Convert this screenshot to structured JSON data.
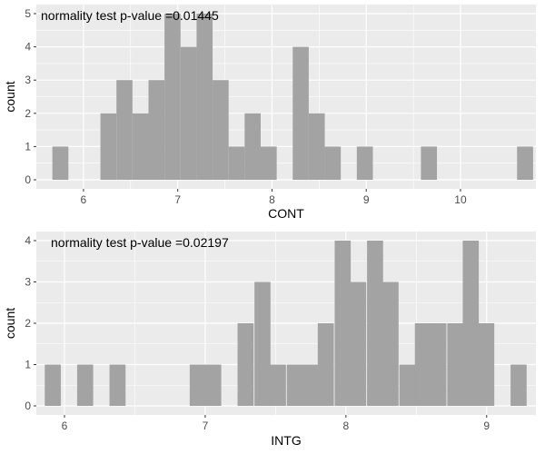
{
  "chart_data": [
    {
      "type": "bar",
      "subtype": "histogram",
      "xlabel": "CONT",
      "ylabel": "count",
      "annotation": "normality test p-value =0.01445",
      "xlim": [
        5.5,
        10.8
      ],
      "ylim": [
        0,
        5
      ],
      "x_ticks": [
        6,
        7,
        8,
        9,
        10
      ],
      "y_ticks": [
        0,
        1,
        2,
        3,
        4,
        5
      ],
      "bin_width": 0.17,
      "bins": [
        {
          "x0": 5.67,
          "count": 1
        },
        {
          "x0": 6.18,
          "count": 2
        },
        {
          "x0": 6.35,
          "count": 3
        },
        {
          "x0": 6.52,
          "count": 2
        },
        {
          "x0": 6.69,
          "count": 3
        },
        {
          "x0": 6.86,
          "count": 5
        },
        {
          "x0": 7.03,
          "count": 4
        },
        {
          "x0": 7.2,
          "count": 5
        },
        {
          "x0": 7.37,
          "count": 3
        },
        {
          "x0": 7.54,
          "count": 1
        },
        {
          "x0": 7.71,
          "count": 2
        },
        {
          "x0": 7.88,
          "count": 1
        },
        {
          "x0": 8.22,
          "count": 4
        },
        {
          "x0": 8.39,
          "count": 2
        },
        {
          "x0": 8.56,
          "count": 1
        },
        {
          "x0": 8.9,
          "count": 1
        },
        {
          "x0": 9.58,
          "count": 1
        },
        {
          "x0": 10.6,
          "count": 1
        }
      ],
      "bar_color": "#a3a3a3",
      "panel_color": "#ebebeb",
      "grid": true
    },
    {
      "type": "bar",
      "subtype": "histogram",
      "xlabel": "INTG",
      "ylabel": "count",
      "annotation": "normality test p-value =0.02197",
      "xlim": [
        5.8,
        9.35
      ],
      "ylim": [
        0,
        4
      ],
      "x_ticks": [
        6,
        7,
        8,
        9
      ],
      "y_ticks": [
        0,
        1,
        2,
        3,
        4
      ],
      "bin_width": 0.114,
      "bins": [
        {
          "x0": 5.86,
          "count": 1
        },
        {
          "x0": 6.09,
          "count": 1
        },
        {
          "x0": 6.32,
          "count": 1
        },
        {
          "x0": 6.89,
          "count": 1
        },
        {
          "x0": 7.0,
          "count": 1
        },
        {
          "x0": 7.23,
          "count": 2
        },
        {
          "x0": 7.35,
          "count": 3
        },
        {
          "x0": 7.46,
          "count": 1
        },
        {
          "x0": 7.58,
          "count": 1
        },
        {
          "x0": 7.69,
          "count": 1
        },
        {
          "x0": 7.8,
          "count": 2
        },
        {
          "x0": 7.92,
          "count": 4
        },
        {
          "x0": 8.03,
          "count": 3
        },
        {
          "x0": 8.15,
          "count": 4
        },
        {
          "x0": 8.26,
          "count": 3
        },
        {
          "x0": 8.38,
          "count": 1
        },
        {
          "x0": 8.49,
          "count": 2
        },
        {
          "x0": 8.6,
          "count": 2
        },
        {
          "x0": 8.72,
          "count": 2
        },
        {
          "x0": 8.83,
          "count": 4
        },
        {
          "x0": 8.94,
          "count": 2
        },
        {
          "x0": 9.17,
          "count": 1
        }
      ],
      "bar_color": "#a3a3a3",
      "panel_color": "#ebebeb",
      "grid": true
    }
  ]
}
